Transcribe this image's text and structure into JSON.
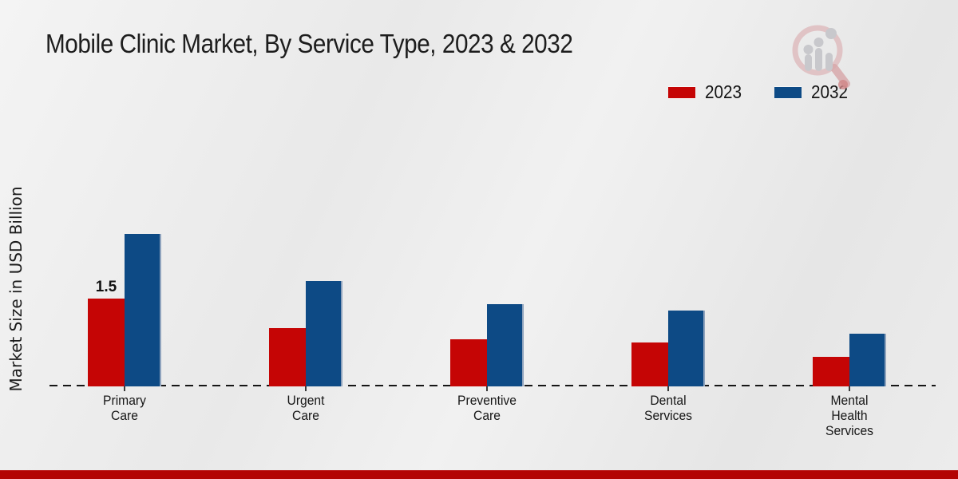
{
  "chart_data": {
    "type": "bar",
    "title": "Mobile Clinic Market, By Service Type, 2023 & 2032",
    "ylabel": "Market Size in USD Billion",
    "xlabel": "",
    "categories": [
      "Primary Care",
      "Urgent Care",
      "Preventive Care",
      "Dental Services",
      "Mental Health Services"
    ],
    "categories_lines": [
      [
        "Primary",
        "Care"
      ],
      [
        "Urgent",
        "Care"
      ],
      [
        "Preventive",
        "Care"
      ],
      [
        "Dental",
        "Services"
      ],
      [
        "Mental",
        "Health",
        "Services"
      ]
    ],
    "series": [
      {
        "name": "2023",
        "color": "#c50505",
        "values": [
          1.5,
          1.0,
          0.8,
          0.75,
          0.5
        ]
      },
      {
        "name": "2032",
        "color": "#0d4a85",
        "values": [
          2.6,
          1.8,
          1.4,
          1.3,
          0.9
        ]
      }
    ],
    "bar_labels": [
      {
        "series_index": 0,
        "category_index": 0,
        "text": "1.5"
      }
    ],
    "ylim": [
      0,
      2.8
    ],
    "grid": false,
    "legend_position": "top-right",
    "baseline_style": "dashed"
  },
  "colors": {
    "red_2023": "#c50505",
    "blue_2032": "#0d4a85",
    "footer_bar": "#b30404",
    "background": "#e9e9e9",
    "axis": "#161616"
  }
}
